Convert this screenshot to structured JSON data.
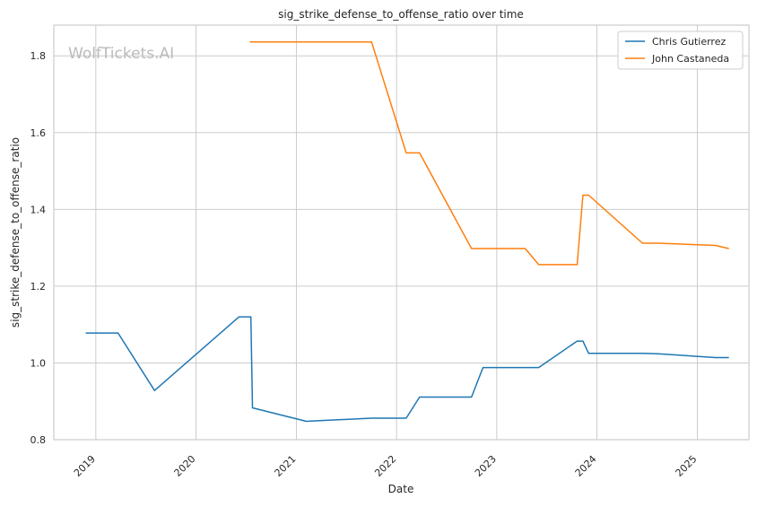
{
  "chart_data": {
    "type": "line",
    "title": "sig_strike_defense_to_offense_ratio over time",
    "xlabel": "Date",
    "ylabel": "sig_strike_defense_to_offense_ratio",
    "watermark": "WolfTickets.AI",
    "x_axis_type": "date",
    "xlim": [
      "2018-08-01",
      "2025-07-08"
    ],
    "ylim": [
      0.8,
      1.88
    ],
    "x_ticks": [
      "2019",
      "2020",
      "2021",
      "2022",
      "2023",
      "2024",
      "2025"
    ],
    "y_ticks": [
      "0.8",
      "1.0",
      "1.2",
      "1.4",
      "1.6",
      "1.8"
    ],
    "grid": true,
    "legend_position": "top-right",
    "series": [
      {
        "name": "Chris Gutierrez",
        "color": "#1f77b4",
        "points": [
          [
            "2018-11-25",
            1.078
          ],
          [
            "2019-03-23",
            1.078
          ],
          [
            "2019-08-03",
            0.928
          ],
          [
            "2020-06-06",
            1.12
          ],
          [
            "2020-07-19",
            1.12
          ],
          [
            "2020-07-25",
            0.883
          ],
          [
            "2021-02-06",
            0.848
          ],
          [
            "2021-10-02",
            0.856
          ],
          [
            "2022-02-05",
            0.856
          ],
          [
            "2022-03-26",
            0.911
          ],
          [
            "2022-10-01",
            0.911
          ],
          [
            "2022-11-12",
            0.988
          ],
          [
            "2023-06-03",
            0.988
          ],
          [
            "2023-10-21",
            1.057
          ],
          [
            "2023-11-11",
            1.057
          ],
          [
            "2023-12-02",
            1.025
          ],
          [
            "2024-06-15",
            1.025
          ],
          [
            "2024-08-10",
            1.024
          ],
          [
            "2025-03-08",
            1.014
          ],
          [
            "2025-04-26",
            1.014
          ]
        ]
      },
      {
        "name": "John Castaneda",
        "color": "#ff7f0e",
        "points": [
          [
            "2020-07-15",
            1.836
          ],
          [
            "2021-10-02",
            1.836
          ],
          [
            "2022-02-05",
            1.547
          ],
          [
            "2022-03-26",
            1.547
          ],
          [
            "2022-10-01",
            1.298
          ],
          [
            "2023-04-15",
            1.298
          ],
          [
            "2023-06-03",
            1.256
          ],
          [
            "2023-10-21",
            1.256
          ],
          [
            "2023-11-11",
            1.437
          ],
          [
            "2023-12-02",
            1.437
          ],
          [
            "2024-06-15",
            1.312
          ],
          [
            "2024-08-10",
            1.312
          ],
          [
            "2025-03-08",
            1.306
          ],
          [
            "2025-04-26",
            1.298
          ]
        ]
      }
    ]
  }
}
